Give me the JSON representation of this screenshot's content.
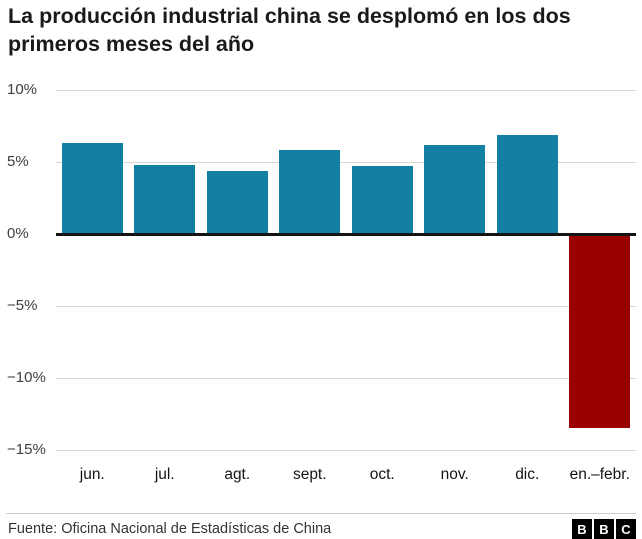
{
  "title": "La producción industrial china se desplomó en los dos primeros meses del año",
  "source": "Fuente: Oficina Nacional de Estadísticas de China",
  "logo": {
    "letters": [
      "B",
      "B",
      "C"
    ]
  },
  "colors": {
    "positive": "#1380A1",
    "negative": "#990000",
    "zero_line": "#141414",
    "gridline": "#d6d6d6"
  },
  "chart_data": {
    "type": "bar",
    "title": "La producción industrial china se desplomó en los dos primeros meses del año",
    "categories": [
      "jun.",
      "jul.",
      "agt.",
      "sept.",
      "oct.",
      "nov.",
      "dic.",
      "en.–febr."
    ],
    "values": [
      6.3,
      4.8,
      4.4,
      5.8,
      4.7,
      6.2,
      6.9,
      -13.5
    ],
    "bar_colors": [
      "#1380A1",
      "#1380A1",
      "#1380A1",
      "#1380A1",
      "#1380A1",
      "#1380A1",
      "#1380A1",
      "#990000"
    ],
    "xlabel": "",
    "ylabel": "",
    "ylim": [
      -15,
      10
    ],
    "yticks": [
      {
        "label": "10%",
        "value": 10
      },
      {
        "label": "5%",
        "value": 5
      },
      {
        "label": "0%",
        "value": 0
      },
      {
        "label": "−5%",
        "value": -5
      },
      {
        "label": "−10%",
        "value": -10
      },
      {
        "label": "−15%",
        "value": -15
      }
    ],
    "grid": true,
    "legend": false
  }
}
